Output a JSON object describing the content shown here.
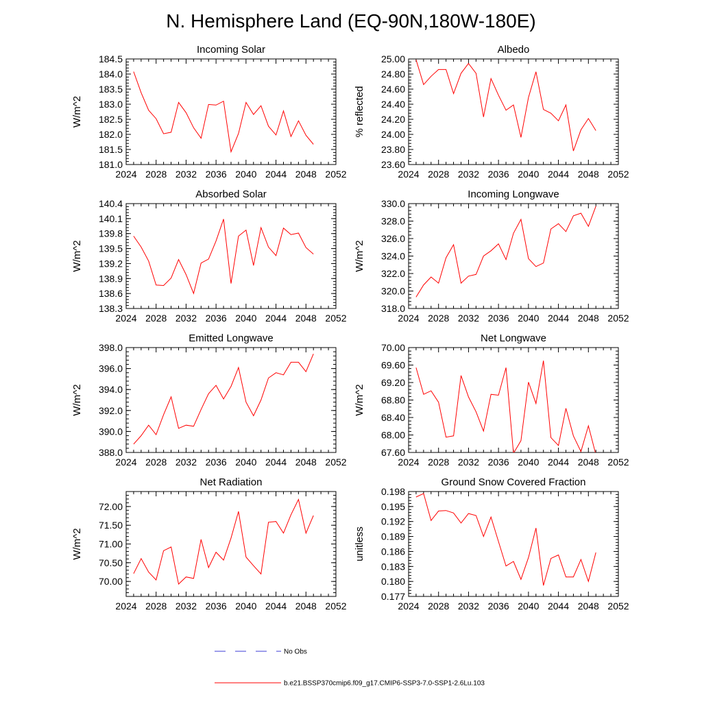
{
  "figure": {
    "title": "N. Hemisphere Land (EQ-90N,180W-180E)"
  },
  "legend": [
    {
      "label": "No Obs",
      "color": "#3b3bd6",
      "style": "dashed"
    },
    {
      "label": "b.e21.BSSP370cmip6.f09_g17.CMIP6-SSP3-7.0-SSP1-2.6Lu.103",
      "color": "#ff0000",
      "style": "solid"
    }
  ],
  "chart_data": [
    {
      "type": "line",
      "title": "Incoming Solar",
      "xlabel": "",
      "ylabel": "W/m^2",
      "xlim": [
        2024,
        2052
      ],
      "ylim": [
        181.0,
        184.5
      ],
      "xticks": [
        "2024",
        "2028",
        "2032",
        "2036",
        "2040",
        "2044",
        "2048",
        "2052"
      ],
      "yticks": [
        "181.0",
        "181.5",
        "182.0",
        "182.5",
        "183.0",
        "183.5",
        "184.0",
        "184.5"
      ],
      "series": [
        {
          "name": "b.e21.BSSP370cmip6.f09_g17.CMIP6-SSP3-7.0-SSP1-2.6Lu.103",
          "color": "#ff0000",
          "x": [
            2025,
            2026,
            2027,
            2028,
            2029,
            2030,
            2031,
            2032,
            2033,
            2034,
            2035,
            2036,
            2037,
            2038,
            2039,
            2040,
            2041,
            2042,
            2043,
            2044,
            2045,
            2046,
            2047,
            2048,
            2049
          ],
          "y": [
            184.08,
            183.38,
            182.8,
            182.52,
            182.02,
            182.07,
            183.06,
            182.72,
            182.22,
            181.87,
            182.99,
            182.97,
            183.1,
            181.42,
            182.03,
            183.06,
            182.66,
            182.95,
            182.27,
            181.98,
            182.78,
            181.93,
            182.45,
            181.97,
            181.67
          ]
        }
      ]
    },
    {
      "type": "line",
      "title": "Albedo",
      "xlabel": "",
      "ylabel": "% reflected",
      "xlim": [
        2024,
        2052
      ],
      "ylim": [
        23.6,
        25.0
      ],
      "xticks": [
        "2024",
        "2028",
        "2032",
        "2036",
        "2040",
        "2044",
        "2048",
        "2052"
      ],
      "yticks": [
        "23.60",
        "23.80",
        "24.00",
        "24.20",
        "24.40",
        "24.60",
        "24.80",
        "25.00"
      ],
      "series": [
        {
          "name": "b.e21.BSSP370cmip6.f09_g17.CMIP6-SSP3-7.0-SSP1-2.6Lu.103",
          "color": "#ff0000",
          "x": [
            2025,
            2026,
            2027,
            2028,
            2029,
            2030,
            2031,
            2032,
            2033,
            2034,
            2035,
            2036,
            2037,
            2038,
            2039,
            2040,
            2041,
            2042,
            2043,
            2044,
            2045,
            2046,
            2047,
            2048,
            2049
          ],
          "y": [
            24.99,
            24.66,
            24.77,
            24.86,
            24.86,
            24.54,
            24.81,
            24.94,
            24.81,
            24.23,
            24.74,
            24.52,
            24.32,
            24.39,
            23.96,
            24.49,
            24.83,
            24.33,
            24.28,
            24.18,
            24.39,
            23.78,
            24.06,
            24.21,
            24.05
          ]
        }
      ]
    },
    {
      "type": "line",
      "title": "Absorbed Solar",
      "xlabel": "",
      "ylabel": "W/m^2",
      "xlim": [
        2024,
        2052
      ],
      "ylim": [
        138.3,
        140.4
      ],
      "xticks": [
        "2024",
        "2028",
        "2032",
        "2036",
        "2040",
        "2044",
        "2048",
        "2052"
      ],
      "yticks": [
        "138.3",
        "138.6",
        "138.9",
        "139.2",
        "139.5",
        "139.8",
        "140.1",
        "140.4"
      ],
      "series": [
        {
          "name": "b.e21.BSSP370cmip6.f09_g17.CMIP6-SSP3-7.0-SSP1-2.6Lu.103",
          "color": "#ff0000",
          "x": [
            2025,
            2026,
            2027,
            2028,
            2029,
            2030,
            2031,
            2032,
            2033,
            2034,
            2035,
            2036,
            2037,
            2038,
            2039,
            2040,
            2041,
            2042,
            2043,
            2044,
            2045,
            2046,
            2047,
            2048,
            2049
          ],
          "y": [
            139.75,
            139.53,
            139.25,
            138.77,
            138.76,
            138.91,
            139.28,
            138.98,
            138.6,
            139.21,
            139.29,
            139.65,
            140.09,
            138.8,
            139.75,
            139.87,
            139.16,
            139.92,
            139.53,
            139.36,
            139.91,
            139.78,
            139.81,
            139.52,
            139.39
          ]
        }
      ]
    },
    {
      "type": "line",
      "title": "Incoming Longwave",
      "xlabel": "",
      "ylabel": "W/m^2",
      "xlim": [
        2024,
        2052
      ],
      "ylim": [
        318.0,
        330.0
      ],
      "xticks": [
        "2024",
        "2028",
        "2032",
        "2036",
        "2040",
        "2044",
        "2048",
        "2052"
      ],
      "yticks": [
        "318.0",
        "320.0",
        "322.0",
        "324.0",
        "326.0",
        "328.0",
        "330.0"
      ],
      "series": [
        {
          "name": "b.e21.BSSP370cmip6.f09_g17.CMIP6-SSP3-7.0-SSP1-2.6Lu.103",
          "color": "#ff0000",
          "x": [
            2025,
            2026,
            2027,
            2028,
            2029,
            2030,
            2031,
            2032,
            2033,
            2034,
            2035,
            2036,
            2037,
            2038,
            2039,
            2040,
            2041,
            2042,
            2043,
            2044,
            2045,
            2046,
            2047,
            2048,
            2049
          ],
          "y": [
            319.3,
            320.7,
            321.6,
            320.9,
            323.8,
            325.3,
            320.9,
            321.7,
            321.9,
            324.0,
            324.6,
            325.4,
            323.6,
            326.6,
            328.2,
            323.7,
            322.8,
            323.2,
            327.1,
            327.7,
            326.8,
            328.6,
            328.9,
            327.4,
            329.7
          ]
        }
      ]
    },
    {
      "type": "line",
      "title": "Emitted Longwave",
      "xlabel": "",
      "ylabel": "W/m^2",
      "xlim": [
        2024,
        2052
      ],
      "ylim": [
        388.0,
        398.0
      ],
      "xticks": [
        "2024",
        "2028",
        "2032",
        "2036",
        "2040",
        "2044",
        "2048",
        "2052"
      ],
      "yticks": [
        "388.0",
        "390.0",
        "392.0",
        "394.0",
        "396.0",
        "398.0"
      ],
      "series": [
        {
          "name": "b.e21.BSSP370cmip6.f09_g17.CMIP6-SSP3-7.0-SSP1-2.6Lu.103",
          "color": "#ff0000",
          "x": [
            2025,
            2026,
            2027,
            2028,
            2029,
            2030,
            2031,
            2032,
            2033,
            2034,
            2035,
            2036,
            2037,
            2038,
            2039,
            2040,
            2041,
            2042,
            2043,
            2044,
            2045,
            2046,
            2047,
            2048,
            2049
          ],
          "y": [
            388.8,
            389.6,
            390.6,
            389.7,
            391.6,
            393.3,
            390.3,
            390.6,
            390.5,
            392.1,
            393.6,
            394.4,
            393.1,
            394.3,
            396.1,
            392.8,
            391.5,
            393.0,
            395.1,
            395.6,
            395.4,
            396.6,
            396.6,
            395.7,
            397.4
          ]
        }
      ]
    },
    {
      "type": "line",
      "title": "Net Longwave",
      "xlabel": "",
      "ylabel": "W/m^2",
      "xlim": [
        2024,
        2052
      ],
      "ylim": [
        67.6,
        70.0
      ],
      "xticks": [
        "2024",
        "2028",
        "2032",
        "2036",
        "2040",
        "2044",
        "2048",
        "2052"
      ],
      "yticks": [
        "67.60",
        "68.00",
        "68.40",
        "68.80",
        "69.20",
        "69.60",
        "70.00"
      ],
      "series": [
        {
          "name": "b.e21.BSSP370cmip6.f09_g17.CMIP6-SSP3-7.0-SSP1-2.6Lu.103",
          "color": "#ff0000",
          "x": [
            2025,
            2026,
            2027,
            2028,
            2029,
            2030,
            2031,
            2032,
            2033,
            2034,
            2035,
            2036,
            2037,
            2038,
            2039,
            2040,
            2041,
            2042,
            2043,
            2044,
            2045,
            2046,
            2047,
            2048,
            2049
          ],
          "y": [
            69.54,
            68.93,
            69.01,
            68.75,
            67.95,
            67.98,
            69.36,
            68.87,
            68.53,
            68.09,
            68.93,
            68.91,
            69.54,
            67.58,
            67.87,
            69.21,
            68.72,
            69.7,
            67.94,
            67.76,
            68.61,
            67.98,
            67.62,
            68.21,
            67.55
          ]
        }
      ]
    },
    {
      "type": "line",
      "title": "Net Radiation",
      "xlabel": "",
      "ylabel": "W/m^2",
      "xlim": [
        2024,
        2052
      ],
      "ylim": [
        69.6,
        72.4
      ],
      "xticks": [
        "2024",
        "2028",
        "2032",
        "2036",
        "2040",
        "2044",
        "2048",
        "2052"
      ],
      "yticks": [
        "70.00",
        "70.50",
        "71.00",
        "71.50",
        "72.00"
      ],
      "series": [
        {
          "name": "b.e21.BSSP370cmip6.f09_g17.CMIP6-SSP3-7.0-SSP1-2.6Lu.103",
          "color": "#ff0000",
          "x": [
            2025,
            2026,
            2027,
            2028,
            2029,
            2030,
            2031,
            2032,
            2033,
            2034,
            2035,
            2036,
            2037,
            2038,
            2039,
            2040,
            2041,
            2042,
            2043,
            2044,
            2045,
            2046,
            2047,
            2048,
            2049
          ],
          "y": [
            70.21,
            70.61,
            70.25,
            70.04,
            70.82,
            70.92,
            69.93,
            70.12,
            70.08,
            71.12,
            70.37,
            70.78,
            70.57,
            71.16,
            71.87,
            70.65,
            70.42,
            70.2,
            71.58,
            71.6,
            71.29,
            71.78,
            72.19,
            71.29,
            71.76
          ]
        }
      ]
    },
    {
      "type": "line",
      "title": "Ground Snow Covered Fraction",
      "xlabel": "",
      "ylabel": "unitless",
      "xlim": [
        2024,
        2052
      ],
      "ylim": [
        0.177,
        0.198
      ],
      "xticks": [
        "2024",
        "2028",
        "2032",
        "2036",
        "2040",
        "2044",
        "2048",
        "2052"
      ],
      "yticks": [
        "0.177",
        "0.180",
        "0.183",
        "0.186",
        "0.189",
        "0.192",
        "0.195",
        "0.198"
      ],
      "series": [
        {
          "name": "b.e21.BSSP370cmip6.f09_g17.CMIP6-SSP3-7.0-SSP1-2.6Lu.103",
          "color": "#ff0000",
          "x": [
            2025,
            2026,
            2027,
            2028,
            2029,
            2030,
            2031,
            2032,
            2033,
            2034,
            2035,
            2036,
            2037,
            2038,
            2039,
            2040,
            2041,
            2042,
            2043,
            2044,
            2045,
            2046,
            2047,
            2048,
            2049
          ],
          "y": [
            0.1969,
            0.1976,
            0.1922,
            0.1941,
            0.1942,
            0.1937,
            0.1917,
            0.1936,
            0.1932,
            0.189,
            0.1929,
            0.188,
            0.1831,
            0.184,
            0.1804,
            0.1848,
            0.1907,
            0.1792,
            0.1846,
            0.1853,
            0.1809,
            0.1809,
            0.1844,
            0.18,
            0.1858
          ]
        }
      ]
    }
  ]
}
